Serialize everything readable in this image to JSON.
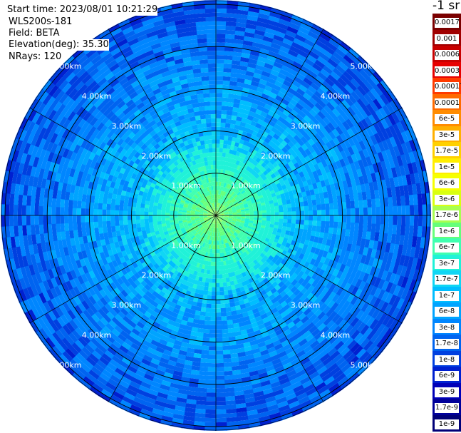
{
  "header": {
    "start_time": "Start time: 2023/08/01 10:21:29",
    "instrument": "WLS200s-181",
    "field": "Field: BETA",
    "elevation": "Elevation(deg): 35.30",
    "nrays": "NRays: 120"
  },
  "colorbar": {
    "title": "-1 sr",
    "ticks": [
      "0.0017",
      "0.001",
      "0.0006",
      "0.0003",
      "0.00017",
      "0.0001",
      "6e-5",
      "3e-5",
      "1.7e-5",
      "1e-5",
      "6e-6",
      "3e-6",
      "1.7e-6",
      "1e-6",
      "6e-7",
      "3e-7",
      "1.7e-7",
      "1e-7",
      "6e-8",
      "3e-8",
      "1.7e-8",
      "1e-8",
      "6e-9",
      "3e-9",
      "1.7e-9",
      "1e-9"
    ],
    "colors": [
      "#7a0000",
      "#a00000",
      "#c80000",
      "#e60000",
      "#ff3b00",
      "#ff6a00",
      "#ff8c00",
      "#ffb000",
      "#ffd000",
      "#ffee00",
      "#f6ff00",
      "#d9ff10",
      "#a8ff50",
      "#66ff7a",
      "#40ffb0",
      "#20f2d8",
      "#10d6f4",
      "#00beff",
      "#00a4ff",
      "#0086ff",
      "#0064f0",
      "#0040e0",
      "#0020d0",
      "#0000b8",
      "#00009a",
      "#000078"
    ]
  },
  "chart_data": {
    "type": "heatmap",
    "projection": "polar (PPI)",
    "field": "BETA",
    "units": "sr^-1",
    "n_rays": 120,
    "elevation_deg": 35.3,
    "range_rings": [
      {
        "label": "1.00km",
        "km": 1.0
      },
      {
        "label": "2.00km",
        "km": 2.0
      },
      {
        "label": "3.00km",
        "km": 3.0
      },
      {
        "label": "4.00km",
        "km": 4.0
      },
      {
        "label": "5.00km",
        "km": 5.0
      }
    ],
    "spokes_deg": [
      0,
      30,
      60,
      90,
      120,
      150,
      180,
      210,
      240,
      270,
      300,
      330
    ],
    "radial_profile": [
      {
        "r_km": 0.0,
        "value": 1.7e-06
      },
      {
        "r_km": 0.5,
        "value": 1e-06
      },
      {
        "r_km": 1.0,
        "value": 6e-07
      },
      {
        "r_km": 1.5,
        "value": 3e-07
      },
      {
        "r_km": 2.0,
        "value": 1e-07
      },
      {
        "r_km": 3.0,
        "value": 6e-08
      },
      {
        "r_km": 4.0,
        "value": 3e-08
      },
      {
        "r_km": 5.0,
        "value": 1.7e-08
      },
      {
        "r_km": 6.0,
        "value": 1e-08
      }
    ]
  }
}
